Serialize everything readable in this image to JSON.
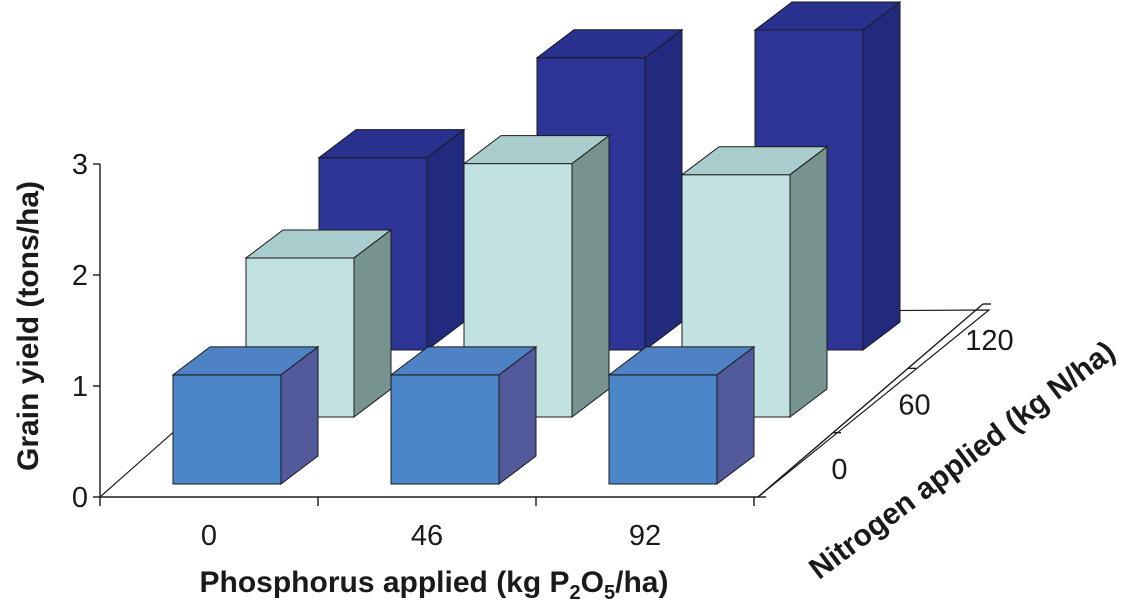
{
  "chart_data": {
    "type": "bar",
    "subtype": "3d-grouped",
    "title": "",
    "ylabel": "Grain yield (tons/ha)",
    "xlabel": {
      "prefix": "Phosphorus applied (kg P",
      "sub1": "2",
      "mid": "O",
      "sub2": "5",
      "suffix": "/ha)"
    },
    "zlabel": "Nitrogen applied (kg N/ha)",
    "categories": [
      "0",
      "46",
      "92"
    ],
    "y_ticks": [
      "0",
      "1",
      "2",
      "3"
    ],
    "ylim": [
      0,
      3
    ],
    "series": [
      {
        "name": "0",
        "values": [
          1.1,
          1.1,
          1.1
        ],
        "colors": {
          "front": "#4a86c8",
          "top": "#4f82c4",
          "side": "#525a9c"
        }
      },
      {
        "name": "60",
        "values": [
          1.55,
          2.4,
          2.3
        ],
        "colors": {
          "front": "#c2e2e2",
          "top": "#a9cccc",
          "side": "#77938f"
        }
      },
      {
        "name": "120",
        "values": [
          1.85,
          2.75,
          3.0
        ],
        "colors": {
          "front": "#2c3595",
          "top": "#28318e",
          "side": "#222a7e"
        }
      }
    ],
    "grid": false,
    "legend": "none"
  }
}
